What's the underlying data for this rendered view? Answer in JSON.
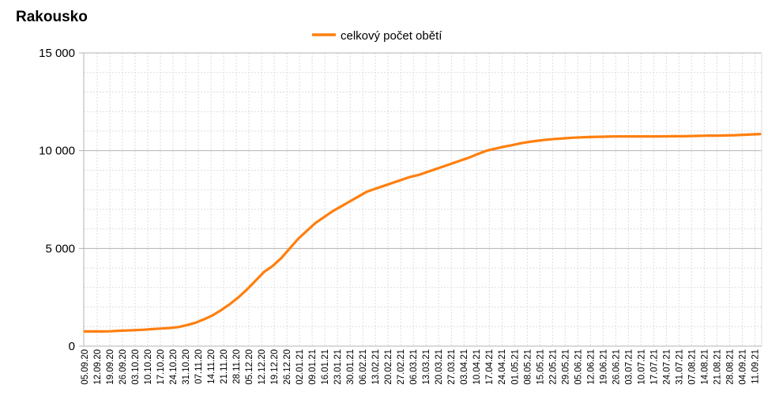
{
  "chart_data": {
    "type": "line",
    "title": "Rakousko",
    "xlabel": "",
    "ylabel": "",
    "ylim": [
      0,
      15000
    ],
    "y_ticks": [
      0,
      5000,
      10000,
      15000
    ],
    "y_tick_labels": [
      "0",
      "5 000",
      "10 000",
      "15 000"
    ],
    "x_tick_labels": [
      "05.09.20",
      "12.09.20",
      "19.09.20",
      "26.09.20",
      "03.10.20",
      "10.10.20",
      "17.10.20",
      "24.10.20",
      "31.10.20",
      "07.11.20",
      "14.11.20",
      "21.11.20",
      "28.11.20",
      "05.12.20",
      "12.12.20",
      "19.12.20",
      "26.12.20",
      "02.01.21",
      "09.01.21",
      "16.01.21",
      "23.01.21",
      "30.01.21",
      "06.02.21",
      "13.02.21",
      "20.02.21",
      "27.02.21",
      "06.03.21",
      "13.03.21",
      "20.03.21",
      "27.03.21",
      "03.04.21",
      "10.04.21",
      "17.04.21",
      "24.04.21",
      "01.05.21",
      "08.05.21",
      "15.05.21",
      "22.05.21",
      "29.05.21",
      "05.06.21",
      "12.06.21",
      "19.06.21",
      "26.06.21",
      "03.07.21",
      "10.07.21",
      "17.07.21",
      "24.07.21",
      "31.07.21",
      "07.08.21",
      "14.08.21",
      "21.08.21",
      "28.08.21",
      "04.09.21",
      "11.09.21"
    ],
    "grid": true,
    "legend_position": "top-center",
    "colors": {
      "series": "#ff7f0e",
      "major_grid": "#b3b3b3",
      "minor_grid": "#dddddd",
      "axis": "#b3b3b3"
    },
    "series": [
      {
        "name": "celkový počet obětí",
        "values": [
          752,
          753,
          754,
          760,
          788,
          800,
          820,
          840,
          876,
          900,
          930,
          980,
          1080,
          1200,
          1380,
          1580,
          1850,
          2150,
          2500,
          2900,
          3350,
          3800,
          4100,
          4500,
          5000,
          5500,
          5900,
          6300,
          6600,
          6900,
          7150,
          7400,
          7650,
          7900,
          8050,
          8200,
          8350,
          8500,
          8650,
          8750,
          8900,
          9050,
          9200,
          9350,
          9500,
          9650,
          9830,
          10000,
          10100,
          10200,
          10280,
          10380,
          10450,
          10510,
          10560,
          10600,
          10630,
          10660,
          10680,
          10700,
          10710,
          10720,
          10730,
          10730,
          10730,
          10730,
          10730,
          10730,
          10735,
          10740,
          10740,
          10750,
          10760,
          10770,
          10770,
          10780,
          10790,
          10810,
          10830,
          10850
        ]
      }
    ]
  }
}
